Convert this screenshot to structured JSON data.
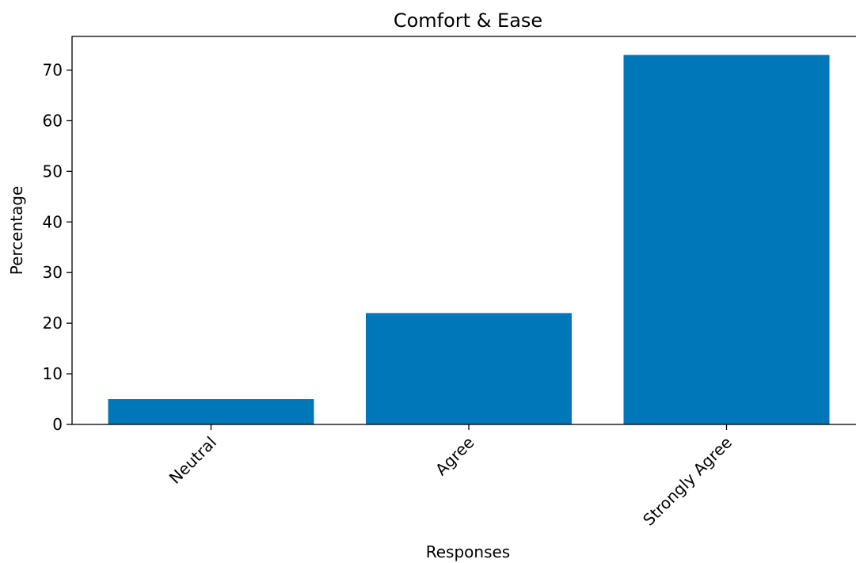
{
  "chart_data": {
    "type": "bar",
    "title": "Comfort & Ease",
    "xlabel": "Responses",
    "ylabel": "Percentage",
    "categories": [
      "Neutral",
      "Agree",
      "Strongly Agree"
    ],
    "values": [
      5,
      22,
      73
    ],
    "ylim": [
      0,
      76.65
    ],
    "yticks": [
      0,
      10,
      20,
      30,
      40,
      50,
      60,
      70
    ],
    "bar_color": "#0077B8",
    "grid": false,
    "legend": "none"
  }
}
